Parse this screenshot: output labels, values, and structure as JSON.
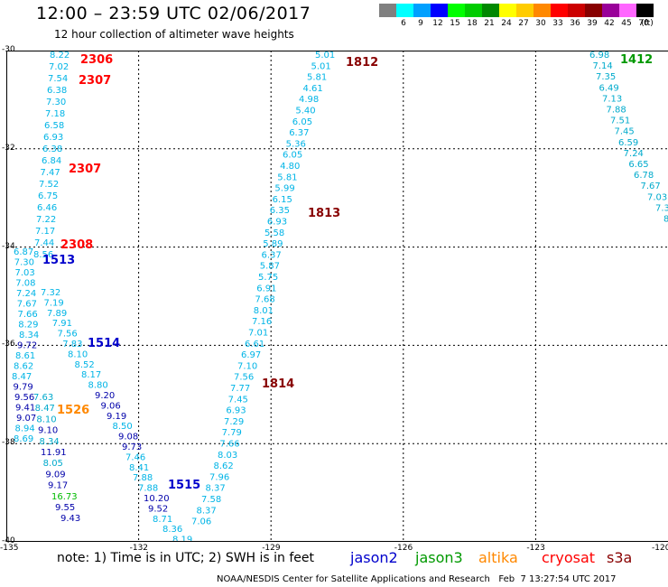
{
  "header": {
    "title": "12:00 – 23:59 UTC 02/06/2017",
    "subtitle": "12 hour collection of altimeter wave heights"
  },
  "legend": {
    "unit": "(ft)",
    "bins": [
      {
        "label": "3",
        "color": "#808080"
      },
      {
        "label": "6",
        "color": "#00ffff"
      },
      {
        "label": "9",
        "color": "#00a0ff"
      },
      {
        "label": "12",
        "color": "#0000ff"
      },
      {
        "label": "15",
        "color": "#00ff00"
      },
      {
        "label": "18",
        "color": "#00cc00"
      },
      {
        "label": "21",
        "color": "#008800"
      },
      {
        "label": "24",
        "color": "#ffff00"
      },
      {
        "label": "27",
        "color": "#ffcc00"
      },
      {
        "label": "30",
        "color": "#ff8800"
      },
      {
        "label": "33",
        "color": "#ff0000"
      },
      {
        "label": "36",
        "color": "#cc0000"
      },
      {
        "label": "39",
        "color": "#880000"
      },
      {
        "label": "42",
        "color": "#990099"
      },
      {
        "label": "45",
        "color": "#ff66ff"
      },
      {
        "label": "70",
        "color": "#000000"
      }
    ]
  },
  "axes": {
    "lat_range": [
      -40,
      -30
    ],
    "lon_range": [
      -135,
      -120
    ],
    "lat_labels": [
      "-30",
      "-32",
      "-34",
      "-36",
      "-38",
      "-40"
    ],
    "lon_labels": [
      "-135",
      "-132",
      "-129",
      "-126",
      "-123",
      "-120"
    ],
    "grid": "dotted"
  },
  "satellite_colors": {
    "jason2": "#0000cc",
    "jason3": "#009900",
    "altika": "#ff8800",
    "cryosat": "#ff0000",
    "s3a": "#880000"
  },
  "tracks": [
    {
      "sat": "cryosat",
      "values": [
        "8.22",
        "7.02",
        "7.54",
        "6.38",
        "7.30",
        "7.18",
        "6.58",
        "6.93",
        "6.38",
        "6.84",
        "7.47",
        "7.52",
        "6.75",
        "6.46",
        "7.22",
        "7.17",
        "7.44",
        "8.56"
      ]
    },
    {
      "sat": "jason2",
      "values": [
        "6.87",
        "7.30",
        "7.03",
        "7.08",
        "7.24",
        "7.67",
        "7.66",
        "8.29",
        "8.34",
        "9.72",
        "8.61",
        "8.62",
        "8.47",
        "9.79",
        "9.56",
        "9.41",
        "9.07",
        "8.94",
        "8.69"
      ]
    },
    {
      "sat": "altika",
      "values": [
        "7.32",
        "7.19",
        "7.89",
        "7.91",
        "7.56",
        "7.83",
        "8.10",
        "8.52",
        "8.17",
        "8.80",
        "9.20",
        "9.06",
        "9.19",
        "8.50",
        "9.08",
        "9.73",
        "7.46",
        "8.41",
        "7.88",
        "7.88",
        "10.20",
        "9.52",
        "8.71",
        "8.36",
        "8.19"
      ]
    },
    {
      "sat": "jason3",
      "values": [
        "7.63",
        "8.47",
        "8.10",
        "9.10",
        "8.34",
        "11.91",
        "8.05",
        "9.09",
        "9.17",
        "16.73",
        "9.55",
        "9.43"
      ]
    },
    {
      "sat": "s3a",
      "values": [
        "5.01",
        "5.01",
        "5.81",
        "4.61",
        "4.98",
        "5.40",
        "6.05",
        "6.37",
        "5.36",
        "6.05",
        "4.80",
        "5.81",
        "5.99",
        "6.15",
        "6.35",
        "6.93",
        "5.58",
        "5.89",
        "6.37",
        "5.87",
        "5.75",
        "6.91",
        "7.68",
        "8.01",
        "7.16",
        "7.01",
        "6.61",
        "6.97",
        "7.10",
        "7.56",
        "7.77",
        "7.45",
        "6.93",
        "7.29",
        "7.79",
        "7.66",
        "8.03",
        "8.62",
        "7.96",
        "8.37",
        "7.58",
        "8.37",
        "7.06"
      ]
    },
    {
      "sat": "jason3",
      "values": [
        "6.98",
        "7.14",
        "7.35",
        "6.49",
        "7.13",
        "7.88",
        "7.51",
        "7.45",
        "6.59",
        "7.24",
        "6.65",
        "6.78",
        "7.67",
        "7.03",
        "7.3",
        "8"
      ]
    }
  ],
  "time_labels": [
    {
      "text": "2306",
      "sat": "cryosat"
    },
    {
      "text": "2307",
      "sat": "cryosat"
    },
    {
      "text": "2307",
      "sat": "cryosat"
    },
    {
      "text": "2308",
      "sat": "cryosat"
    },
    {
      "text": "1513",
      "sat": "jason2"
    },
    {
      "text": "1514",
      "sat": "jason2"
    },
    {
      "text": "1526",
      "sat": "altika"
    },
    {
      "text": "1515",
      "sat": "jason2"
    },
    {
      "text": "1525",
      "sat": "altika"
    },
    {
      "text": "1812",
      "sat": "s3a"
    },
    {
      "text": "1813",
      "sat": "s3a"
    },
    {
      "text": "1814",
      "sat": "s3a"
    },
    {
      "text": "1412",
      "sat": "jason3"
    }
  ],
  "footer": {
    "note": "note: 1) Time is in UTC; 2) SWH is in feet",
    "sat_names": [
      "jason2",
      "jason3",
      "altika",
      "cryosat",
      "s3a"
    ],
    "credit": "NOAA/NESDIS Center for Satellite Applications and Research   Feb  7 13:27:54 UTC 2017"
  }
}
